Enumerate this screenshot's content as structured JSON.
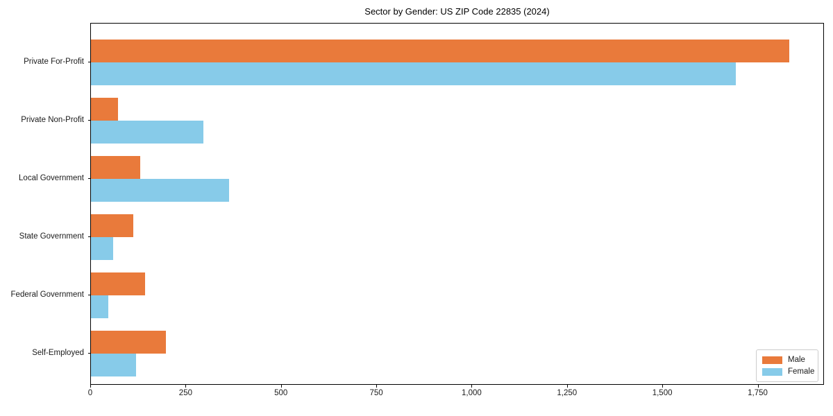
{
  "chart_data": {
    "type": "bar",
    "orientation": "horizontal",
    "title": "Sector by Gender: US ZIP Code 22835 (2024)",
    "categories": [
      "Private For-Profit",
      "Private Non-Profit",
      "Local Government",
      "State Government",
      "Federal Government",
      "Self-Employed"
    ],
    "series": [
      {
        "name": "Male",
        "color": "#E97A3B",
        "values": [
          1830,
          70,
          130,
          111,
          141,
          196
        ]
      },
      {
        "name": "Female",
        "color": "#87CBE9",
        "values": [
          1690,
          295,
          362,
          58,
          46,
          118
        ]
      }
    ],
    "xlabel": "",
    "ylabel": "",
    "xlim": [
      0,
      1922
    ],
    "x_ticks": [
      0,
      250,
      500,
      750,
      1000,
      1250,
      1500,
      1750
    ],
    "x_tick_labels": [
      "0",
      "250",
      "500",
      "750",
      "1,000",
      "1,250",
      "1,500",
      "1,750"
    ],
    "grid": false,
    "legend": {
      "position": "lower right",
      "entries": [
        "Male",
        "Female"
      ]
    },
    "colors": {
      "male": "#E97A3B",
      "female": "#87CBE9",
      "spine": "#000000",
      "background": "#ffffff"
    }
  }
}
